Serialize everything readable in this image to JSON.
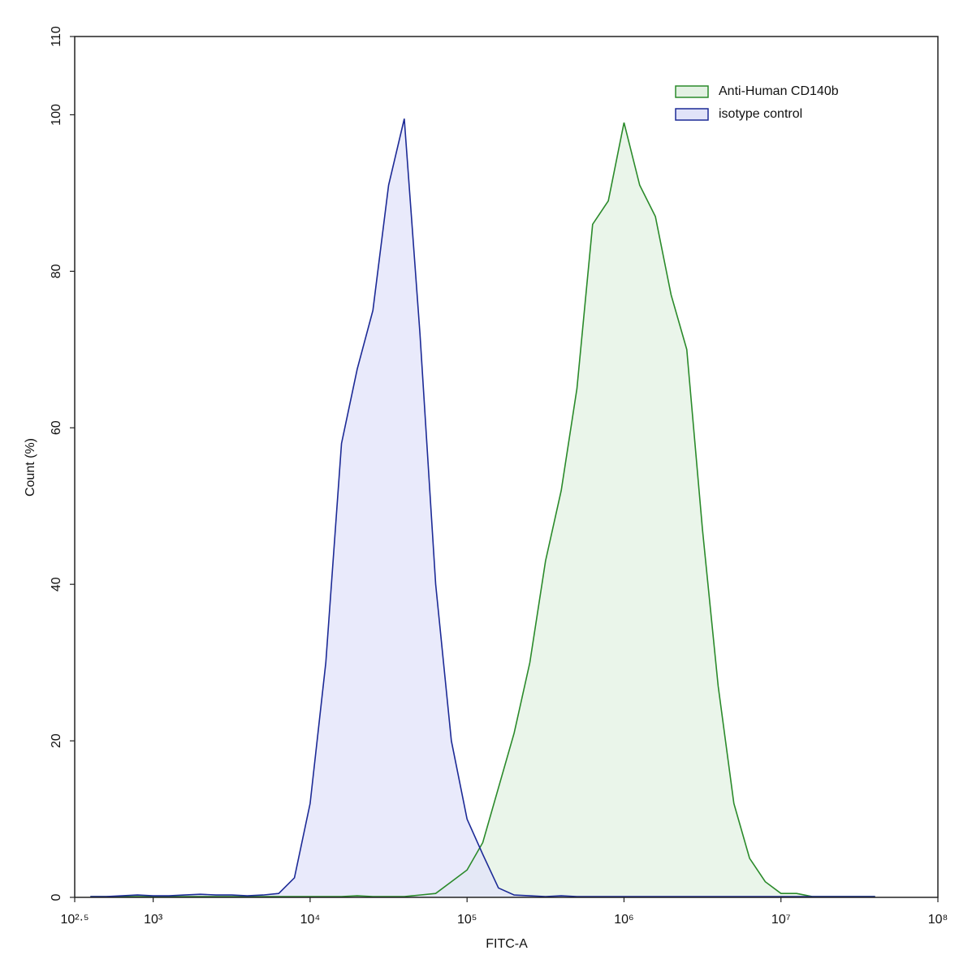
{
  "chart_data": {
    "type": "area",
    "x_label": "FITC-A",
    "y_label": "Count  (%)",
    "xscale": "log",
    "legend": "upper right",
    "xlim": [
      316.2278,
      100000000
    ],
    "xticks": [
      {
        "value": 316.2278,
        "label": "10²·⁵"
      },
      {
        "value": 1000,
        "label": "10³"
      },
      {
        "value": 10000,
        "label": "10⁴"
      },
      {
        "value": 100000,
        "label": "10⁵"
      },
      {
        "value": 1000000,
        "label": "10⁶"
      },
      {
        "value": 10000000,
        "label": "10⁷"
      },
      {
        "value": 100000000,
        "label": "10⁸"
      }
    ],
    "ylim": [
      0,
      110
    ],
    "yticks": [
      0,
      20,
      40,
      60,
      80,
      100,
      110
    ],
    "x": [
      398,
      501,
      631,
      794,
      1000,
      1259,
      1585,
      1995,
      2512,
      3162,
      3981,
      5012,
      6310,
      7943,
      10000,
      12589,
      15849,
      19953,
      25119,
      31623,
      39811,
      50119,
      63096,
      79433,
      100000,
      125893,
      158489,
      199526,
      251189,
      316228,
      398107,
      501187,
      630957,
      794328,
      1000000,
      1258925,
      1584893,
      1995262,
      2511886,
      3162278,
      3981072,
      5011872,
      6309573,
      7943282,
      10000000,
      12589254,
      15848932,
      19952623,
      25118864,
      31622777,
      39810717
    ],
    "series": [
      {
        "name": "Anti-Human CD140b",
        "color": "#2a8a2a",
        "fill": "#e3f1e3",
        "values": [
          0.1,
          0.1,
          0.1,
          0.1,
          0.1,
          0.1,
          0.1,
          0.1,
          0.1,
          0.1,
          0.1,
          0.1,
          0.1,
          0.1,
          0.1,
          0.1,
          0.1,
          0.2,
          0.1,
          0.1,
          0.1,
          0.3,
          0.5,
          2,
          3.5,
          7,
          14,
          21,
          30,
          43,
          52,
          65,
          86,
          89,
          99,
          91,
          87,
          77,
          70,
          47,
          27,
          12,
          5,
          2,
          0.5,
          0.5,
          0.1,
          0.1,
          0.1,
          0.1,
          0.1
        ]
      },
      {
        "name": "isotype control",
        "color": "#1c2a96",
        "fill": "#e1e3f9",
        "values": [
          0.1,
          0.1,
          0.2,
          0.3,
          0.2,
          0.2,
          0.3,
          0.4,
          0.3,
          0.3,
          0.2,
          0.3,
          0.5,
          2.5,
          12,
          30,
          58,
          67.5,
          75,
          91,
          99.5,
          72,
          40,
          20,
          10,
          5.5,
          1.2,
          0.3,
          0.2,
          0.1,
          0.2,
          0.1,
          0.1,
          0.1,
          0.1,
          0.1,
          0.1,
          0.1,
          0.1,
          0.1,
          0.1,
          0.1,
          0.1,
          0.1,
          0.1,
          0.1,
          0.1,
          0.1,
          0.1,
          0.1,
          0.1
        ]
      }
    ]
  }
}
